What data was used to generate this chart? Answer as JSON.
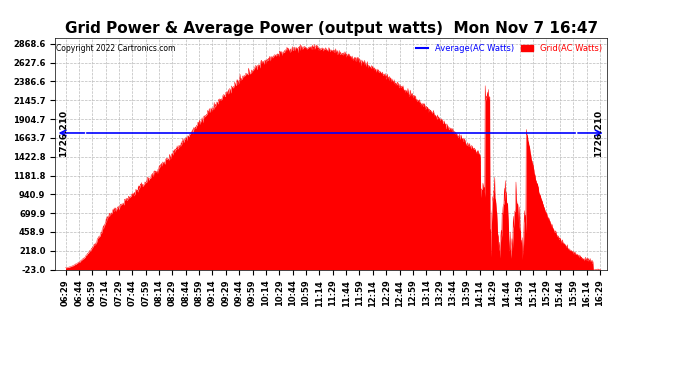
{
  "title": "Grid Power & Average Power (output watts)  Mon Nov 7 16:47",
  "copyright": "Copyright 2022 Cartronics.com",
  "legend_avg": "Average(AC Watts)",
  "legend_grid": "Grid(AC Watts)",
  "avg_line_value": 1726.21,
  "avg_label": "1726.210",
  "ymin": -23.0,
  "ymax": 2868.6,
  "yticks": [
    2868.6,
    2627.6,
    2386.6,
    2145.7,
    1904.7,
    1663.7,
    1422.8,
    1181.8,
    940.9,
    699.9,
    458.9,
    218.0,
    -23.0
  ],
  "grid_color": "#FF0000",
  "avg_color": "#0000FF",
  "background_color": "#FFFFFF",
  "title_fontsize": 11,
  "tick_fontsize": 6,
  "annotation_fontsize": 6.5,
  "xlim_left": 6.29,
  "xlim_right": 16.62,
  "first_tick_hour": 6,
  "first_tick_min": 29,
  "x_interval_min": 15,
  "x_end_hour": 16,
  "x_end_min": 30
}
